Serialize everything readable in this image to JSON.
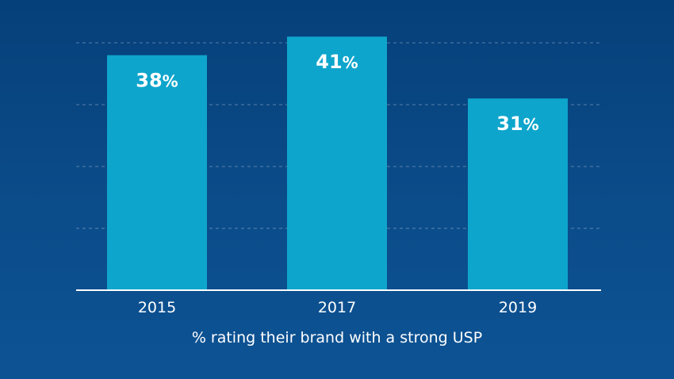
{
  "chart_data": {
    "type": "bar",
    "categories": [
      "2015",
      "2017",
      "2019"
    ],
    "values": [
      38,
      41,
      31
    ],
    "value_labels": [
      "38",
      "41",
      "31"
    ],
    "value_unit": "%",
    "title": "",
    "xlabel": "% rating their brand with a strong USP",
    "ylabel": "",
    "ylim": [
      0,
      40
    ],
    "grid": true,
    "legend": "none",
    "colors": {
      "bar": "#0ea5cc",
      "background": "#0b4c8a",
      "text": "#ffffff",
      "gridline": "#6f93bd"
    }
  }
}
